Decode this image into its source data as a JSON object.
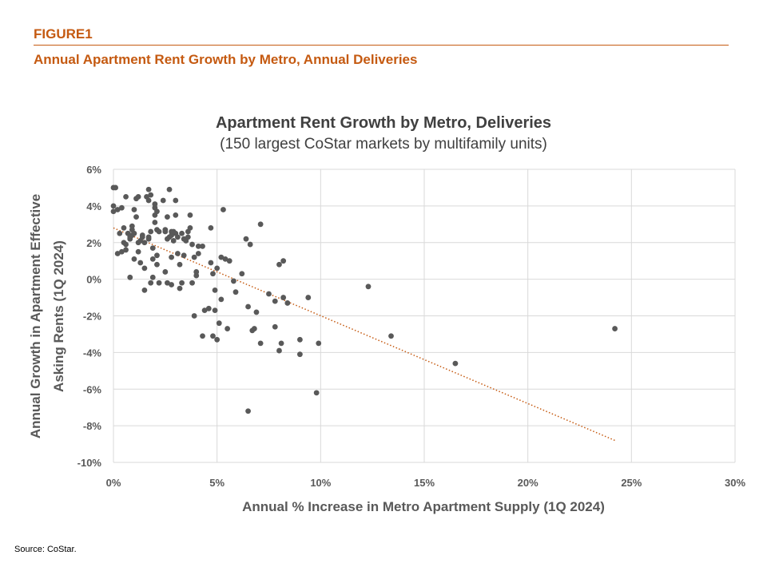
{
  "header": {
    "figure_label": "FIGURE1",
    "figure_title": "Annual Apartment Rent Growth by Metro, Annual Deliveries"
  },
  "footer": {
    "source": "Source: CoStar."
  },
  "colors": {
    "accent": "#c55a11",
    "points": "#595959",
    "trendline": "#c55a11",
    "grid": "#d9d9d9"
  },
  "chart_data": {
    "type": "scatter",
    "title": "Apartment Rent Growth by Metro, Deliveries",
    "subtitle": "(150 largest CoStar markets by multifamily units)",
    "xlabel": "Annual % Increase in Metro Apartment Supply (1Q 2024)",
    "ylabel_line1": "Annual Growth in Apartment Effective",
    "ylabel_line2": "Asking Rents (1Q 2024)",
    "xlim": [
      0,
      30
    ],
    "ylim": [
      -10,
      6
    ],
    "x_ticks": [
      "0%",
      "5%",
      "10%",
      "15%",
      "20%",
      "25%",
      "30%"
    ],
    "y_ticks": [
      "6%",
      "4%",
      "2%",
      "0%",
      "-2%",
      "-4%",
      "-6%",
      "-8%",
      "-10%"
    ],
    "x_tick_values": [
      0,
      5,
      10,
      15,
      20,
      25,
      30
    ],
    "y_tick_values": [
      6,
      4,
      2,
      0,
      -2,
      -4,
      -6,
      -8,
      -10
    ],
    "grid": "horizontal",
    "trendline": {
      "style": "dotted",
      "from": [
        0,
        2.8
      ],
      "to": [
        24.2,
        -8.8
      ]
    },
    "points": [
      [
        0.0,
        5.0
      ],
      [
        0.1,
        5.0
      ],
      [
        0.0,
        4.0
      ],
      [
        0.2,
        3.8
      ],
      [
        0.4,
        3.9
      ],
      [
        0.0,
        3.7
      ],
      [
        0.3,
        2.5
      ],
      [
        0.5,
        2.8
      ],
      [
        0.6,
        4.5
      ],
      [
        0.2,
        1.4
      ],
      [
        0.4,
        1.5
      ],
      [
        0.5,
        2.0
      ],
      [
        0.6,
        1.9
      ],
      [
        0.7,
        2.5
      ],
      [
        0.8,
        2.3
      ],
      [
        0.9,
        2.4
      ],
      [
        0.6,
        1.6
      ],
      [
        0.8,
        2.2
      ],
      [
        0.9,
        2.7
      ],
      [
        0.9,
        2.9
      ],
      [
        1.0,
        2.5
      ],
      [
        1.0,
        1.1
      ],
      [
        0.8,
        0.1
      ],
      [
        1.0,
        3.8
      ],
      [
        1.1,
        4.4
      ],
      [
        1.2,
        4.5
      ],
      [
        1.1,
        3.4
      ],
      [
        1.2,
        2.0
      ],
      [
        1.3,
        2.1
      ],
      [
        1.4,
        2.4
      ],
      [
        1.4,
        2.3
      ],
      [
        1.2,
        1.5
      ],
      [
        1.3,
        0.9
      ],
      [
        1.5,
        2.0
      ],
      [
        1.5,
        0.6
      ],
      [
        1.5,
        -0.6
      ],
      [
        1.6,
        4.5
      ],
      [
        1.7,
        4.9
      ],
      [
        1.7,
        4.3
      ],
      [
        1.8,
        4.6
      ],
      [
        1.8,
        2.6
      ],
      [
        1.7,
        2.2
      ],
      [
        1.7,
        2.3
      ],
      [
        1.9,
        1.7
      ],
      [
        1.9,
        1.1
      ],
      [
        1.9,
        0.1
      ],
      [
        1.8,
        -0.2
      ],
      [
        2.0,
        3.9
      ],
      [
        2.0,
        4.1
      ],
      [
        2.1,
        3.7
      ],
      [
        2.0,
        3.5
      ],
      [
        2.0,
        3.1
      ],
      [
        2.1,
        2.7
      ],
      [
        2.2,
        2.6
      ],
      [
        2.1,
        1.3
      ],
      [
        2.1,
        0.8
      ],
      [
        2.2,
        -0.2
      ],
      [
        2.4,
        4.3
      ],
      [
        2.5,
        2.7
      ],
      [
        2.5,
        2.6
      ],
      [
        2.5,
        0.4
      ],
      [
        2.6,
        3.4
      ],
      [
        2.6,
        2.2
      ],
      [
        2.6,
        -0.2
      ],
      [
        2.7,
        4.9
      ],
      [
        2.8,
        2.6
      ],
      [
        2.8,
        2.4
      ],
      [
        2.7,
        2.3
      ],
      [
        2.8,
        1.2
      ],
      [
        2.8,
        -0.3
      ],
      [
        2.9,
        2.6
      ],
      [
        2.9,
        2.1
      ],
      [
        3.0,
        4.3
      ],
      [
        3.0,
        3.5
      ],
      [
        3.0,
        2.5
      ],
      [
        3.1,
        2.3
      ],
      [
        3.1,
        1.4
      ],
      [
        3.2,
        0.8
      ],
      [
        3.2,
        -0.5
      ],
      [
        3.3,
        -0.2
      ],
      [
        3.3,
        2.5
      ],
      [
        3.4,
        2.2
      ],
      [
        3.4,
        1.3
      ],
      [
        3.5,
        2.1
      ],
      [
        3.6,
        2.3
      ],
      [
        3.6,
        2.6
      ],
      [
        3.7,
        3.5
      ],
      [
        3.7,
        2.8
      ],
      [
        3.8,
        1.9
      ],
      [
        3.8,
        -0.2
      ],
      [
        3.9,
        1.2
      ],
      [
        3.9,
        -2.0
      ],
      [
        4.0,
        0.2
      ],
      [
        4.0,
        0.4
      ],
      [
        4.1,
        1.8
      ],
      [
        4.1,
        1.4
      ],
      [
        4.3,
        1.8
      ],
      [
        4.3,
        -3.1
      ],
      [
        4.4,
        -1.7
      ],
      [
        4.6,
        -1.6
      ],
      [
        4.7,
        2.8
      ],
      [
        4.7,
        0.9
      ],
      [
        4.8,
        0.3
      ],
      [
        4.8,
        -3.1
      ],
      [
        4.9,
        -0.6
      ],
      [
        4.9,
        -1.7
      ],
      [
        5.0,
        0.6
      ],
      [
        5.0,
        -3.3
      ],
      [
        5.1,
        -2.4
      ],
      [
        5.2,
        -1.1
      ],
      [
        5.2,
        1.2
      ],
      [
        5.3,
        3.8
      ],
      [
        5.4,
        1.1
      ],
      [
        5.5,
        -2.7
      ],
      [
        5.6,
        1.0
      ],
      [
        5.8,
        -0.1
      ],
      [
        5.9,
        -0.7
      ],
      [
        6.2,
        0.3
      ],
      [
        6.4,
        2.2
      ],
      [
        6.5,
        -1.5
      ],
      [
        6.5,
        -7.2
      ],
      [
        6.6,
        1.9
      ],
      [
        6.7,
        -2.8
      ],
      [
        6.8,
        -2.7
      ],
      [
        6.9,
        -1.8
      ],
      [
        7.1,
        3.0
      ],
      [
        7.1,
        -3.5
      ],
      [
        7.5,
        -0.8
      ],
      [
        7.8,
        -1.2
      ],
      [
        7.8,
        -2.6
      ],
      [
        8.0,
        0.8
      ],
      [
        8.1,
        -3.5
      ],
      [
        8.2,
        -1.0
      ],
      [
        8.2,
        1.0
      ],
      [
        8.4,
        -1.3
      ],
      [
        8.0,
        -3.9
      ],
      [
        9.0,
        -3.3
      ],
      [
        9.0,
        -4.1
      ],
      [
        9.4,
        -1.0
      ],
      [
        9.8,
        -6.2
      ],
      [
        9.9,
        -3.5
      ],
      [
        12.3,
        -0.4
      ],
      [
        13.4,
        -3.1
      ],
      [
        16.5,
        -4.6
      ],
      [
        24.2,
        -2.7
      ]
    ]
  }
}
